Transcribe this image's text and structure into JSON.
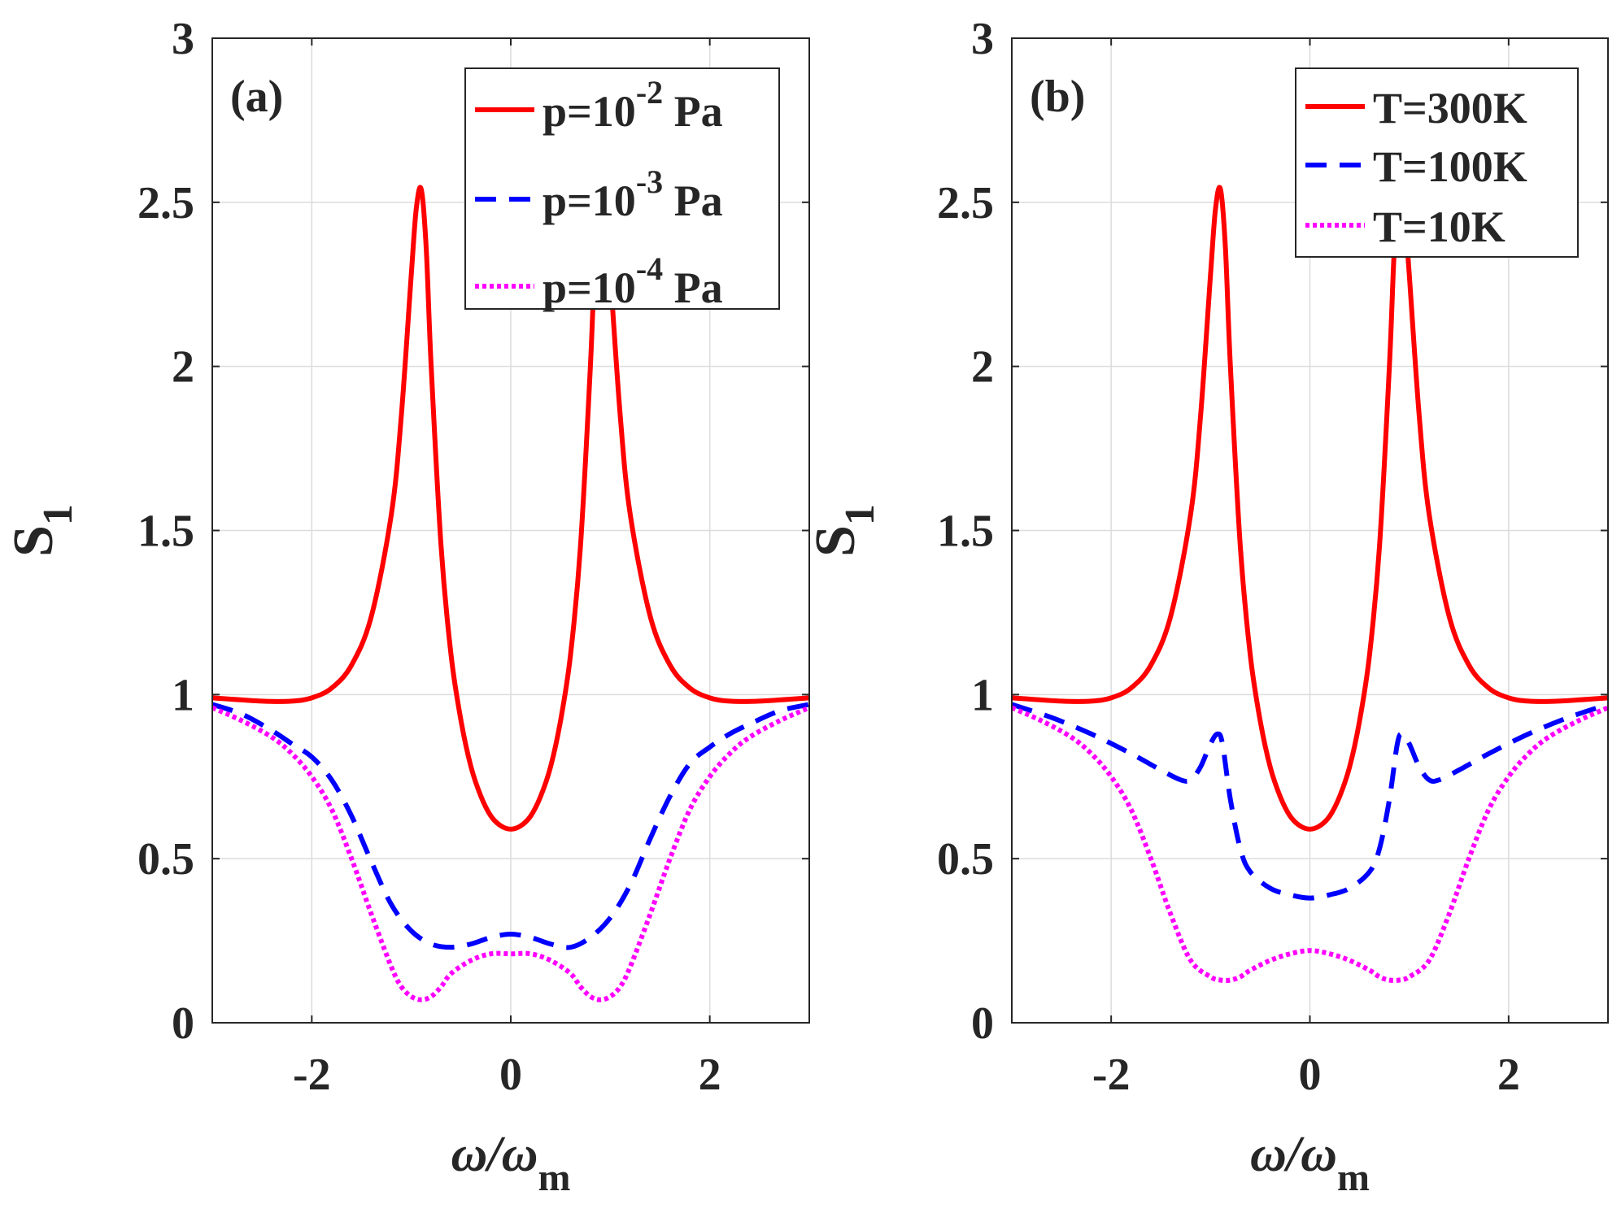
{
  "chart_data": [
    {
      "type": "line",
      "panel_label": "(a)",
      "xlabel": "ω/ω",
      "xlabel_sub": "m",
      "ylabel": "S",
      "ylabel_sub": "1",
      "xlim": [
        -3,
        3
      ],
      "ylim": [
        0,
        3
      ],
      "xticks": [
        -2,
        0,
        2
      ],
      "xtick_labels": [
        "-2",
        "0",
        "2"
      ],
      "yticks": [
        0,
        0.5,
        1,
        1.5,
        2,
        2.5,
        3
      ],
      "ytick_labels": [
        "0",
        "0.5",
        "1",
        "1.5",
        "2",
        "2.5",
        "3"
      ],
      "grid": true,
      "legend_position": "top-right",
      "series": [
        {
          "name": "p=10-2 Pa",
          "name_base": "p=10",
          "name_sup": "-2",
          "name_tail": " Pa",
          "color": "#ff0000",
          "style": "solid",
          "x": [
            -3,
            -2.5,
            -2.2,
            -2,
            -1.8,
            -1.6,
            -1.4,
            -1.2,
            -1.1,
            -1.0,
            -0.95,
            -0.9,
            -0.85,
            -0.8,
            -0.7,
            -0.6,
            -0.5,
            -0.4,
            -0.3,
            -0.2,
            -0.1,
            0,
            0.1,
            0.2,
            0.3,
            0.4,
            0.5,
            0.6,
            0.7,
            0.8,
            0.85,
            0.9,
            0.95,
            1.0,
            1.1,
            1.2,
            1.4,
            1.6,
            1.8,
            2.0,
            2.2,
            2.5,
            3
          ],
          "y": [
            0.99,
            0.98,
            0.98,
            0.99,
            1.02,
            1.09,
            1.24,
            1.55,
            1.85,
            2.28,
            2.48,
            2.54,
            2.36,
            2.0,
            1.45,
            1.12,
            0.92,
            0.78,
            0.69,
            0.63,
            0.6,
            0.59,
            0.6,
            0.63,
            0.69,
            0.78,
            0.92,
            1.12,
            1.45,
            2.0,
            2.36,
            2.54,
            2.48,
            2.28,
            1.85,
            1.55,
            1.24,
            1.09,
            1.02,
            0.99,
            0.98,
            0.98,
            0.99
          ]
        },
        {
          "name": "p=10-3 Pa",
          "name_base": "p=10",
          "name_sup": "-3",
          "name_tail": " Pa",
          "color": "#0000ff",
          "style": "dashed",
          "x": [
            -3,
            -2.7,
            -2.4,
            -2.2,
            -2.0,
            -1.8,
            -1.6,
            -1.4,
            -1.2,
            -1.0,
            -0.8,
            -0.6,
            -0.4,
            -0.2,
            0,
            0.2,
            0.4,
            0.6,
            0.8,
            1.0,
            1.2,
            1.4,
            1.6,
            1.8,
            2.0,
            2.2,
            2.4,
            2.7,
            3
          ],
          "y": [
            0.97,
            0.94,
            0.89,
            0.85,
            0.81,
            0.74,
            0.63,
            0.49,
            0.36,
            0.28,
            0.24,
            0.23,
            0.24,
            0.26,
            0.27,
            0.26,
            0.24,
            0.23,
            0.26,
            0.32,
            0.42,
            0.56,
            0.69,
            0.79,
            0.84,
            0.88,
            0.91,
            0.95,
            0.97
          ]
        },
        {
          "name": "p=10-4 Pa",
          "name_base": "p=10",
          "name_sup": "-4",
          "name_tail": " Pa",
          "color": "#ff00ff",
          "style": "dotted",
          "x": [
            -3,
            -2.7,
            -2.4,
            -2.2,
            -2.0,
            -1.8,
            -1.6,
            -1.4,
            -1.2,
            -1.1,
            -1.0,
            -0.9,
            -0.8,
            -0.7,
            -0.6,
            -0.4,
            -0.2,
            0,
            0.2,
            0.4,
            0.6,
            0.7,
            0.8,
            0.9,
            1.0,
            1.1,
            1.2,
            1.4,
            1.6,
            1.8,
            2.0,
            2.2,
            2.4,
            2.7,
            3
          ],
          "y": [
            0.96,
            0.92,
            0.87,
            0.82,
            0.75,
            0.65,
            0.5,
            0.33,
            0.17,
            0.11,
            0.08,
            0.07,
            0.08,
            0.11,
            0.15,
            0.19,
            0.21,
            0.21,
            0.21,
            0.19,
            0.15,
            0.11,
            0.08,
            0.07,
            0.08,
            0.11,
            0.17,
            0.33,
            0.5,
            0.65,
            0.75,
            0.82,
            0.87,
            0.92,
            0.96
          ]
        }
      ]
    },
    {
      "type": "line",
      "panel_label": "(b)",
      "xlabel": "ω/ω",
      "xlabel_sub": "m",
      "ylabel": "S",
      "ylabel_sub": "1",
      "xlim": [
        -3,
        3
      ],
      "ylim": [
        0,
        3
      ],
      "xticks": [
        -2,
        0,
        2
      ],
      "xtick_labels": [
        "-2",
        "0",
        "2"
      ],
      "yticks": [
        0,
        0.5,
        1,
        1.5,
        2,
        2.5,
        3
      ],
      "ytick_labels": [
        "0",
        "0.5",
        "1",
        "1.5",
        "2",
        "2.5",
        "3"
      ],
      "grid": true,
      "legend_position": "top-right",
      "series": [
        {
          "name": "T=300K",
          "name_base": "T=300K",
          "name_sup": "",
          "name_tail": "",
          "color": "#ff0000",
          "style": "solid",
          "x": [
            -3,
            -2.5,
            -2.2,
            -2,
            -1.8,
            -1.6,
            -1.4,
            -1.2,
            -1.1,
            -1.0,
            -0.95,
            -0.9,
            -0.85,
            -0.8,
            -0.7,
            -0.6,
            -0.5,
            -0.4,
            -0.3,
            -0.2,
            -0.1,
            0,
            0.1,
            0.2,
            0.3,
            0.4,
            0.5,
            0.6,
            0.7,
            0.8,
            0.85,
            0.9,
            0.95,
            1.0,
            1.1,
            1.2,
            1.4,
            1.6,
            1.8,
            2.0,
            2.2,
            2.5,
            3
          ],
          "y": [
            0.99,
            0.98,
            0.98,
            0.99,
            1.02,
            1.09,
            1.24,
            1.55,
            1.85,
            2.28,
            2.48,
            2.54,
            2.36,
            2.0,
            1.45,
            1.12,
            0.92,
            0.78,
            0.69,
            0.63,
            0.6,
            0.59,
            0.6,
            0.63,
            0.69,
            0.78,
            0.92,
            1.12,
            1.45,
            2.0,
            2.36,
            2.54,
            2.48,
            2.28,
            1.85,
            1.55,
            1.24,
            1.09,
            1.02,
            0.99,
            0.98,
            0.98,
            0.99
          ]
        },
        {
          "name": "T=100K",
          "name_base": "T=100K",
          "name_sup": "",
          "name_tail": "",
          "color": "#0000ff",
          "style": "dashed",
          "x": [
            -3,
            -2.6,
            -2.2,
            -1.8,
            -1.5,
            -1.3,
            -1.2,
            -1.1,
            -1.0,
            -0.93,
            -0.88,
            -0.8,
            -0.7,
            -0.6,
            -0.4,
            -0.2,
            0,
            0.2,
            0.4,
            0.6,
            0.7,
            0.8,
            0.88,
            0.93,
            1.0,
            1.1,
            1.2,
            1.3,
            1.5,
            1.8,
            2.2,
            2.6,
            3
          ],
          "y": [
            0.97,
            0.93,
            0.88,
            0.82,
            0.77,
            0.74,
            0.74,
            0.78,
            0.85,
            0.88,
            0.85,
            0.68,
            0.53,
            0.46,
            0.41,
            0.39,
            0.38,
            0.39,
            0.41,
            0.46,
            0.53,
            0.68,
            0.85,
            0.88,
            0.85,
            0.78,
            0.74,
            0.74,
            0.77,
            0.82,
            0.88,
            0.93,
            0.97
          ]
        },
        {
          "name": "T=10K",
          "name_base": "T=10K",
          "name_sup": "",
          "name_tail": "",
          "color": "#ff00ff",
          "style": "dotted",
          "x": [
            -3,
            -2.7,
            -2.4,
            -2.2,
            -2.0,
            -1.8,
            -1.6,
            -1.4,
            -1.2,
            -1.0,
            -0.9,
            -0.8,
            -0.7,
            -0.6,
            -0.4,
            -0.2,
            0,
            0.2,
            0.4,
            0.6,
            0.7,
            0.8,
            0.9,
            1.0,
            1.2,
            1.4,
            1.6,
            1.8,
            2.0,
            2.2,
            2.4,
            2.7,
            3
          ],
          "y": [
            0.96,
            0.92,
            0.87,
            0.82,
            0.75,
            0.65,
            0.5,
            0.33,
            0.19,
            0.14,
            0.13,
            0.13,
            0.14,
            0.16,
            0.19,
            0.21,
            0.22,
            0.21,
            0.19,
            0.16,
            0.14,
            0.13,
            0.13,
            0.14,
            0.19,
            0.33,
            0.5,
            0.65,
            0.75,
            0.82,
            0.87,
            0.92,
            0.96
          ]
        }
      ]
    }
  ]
}
